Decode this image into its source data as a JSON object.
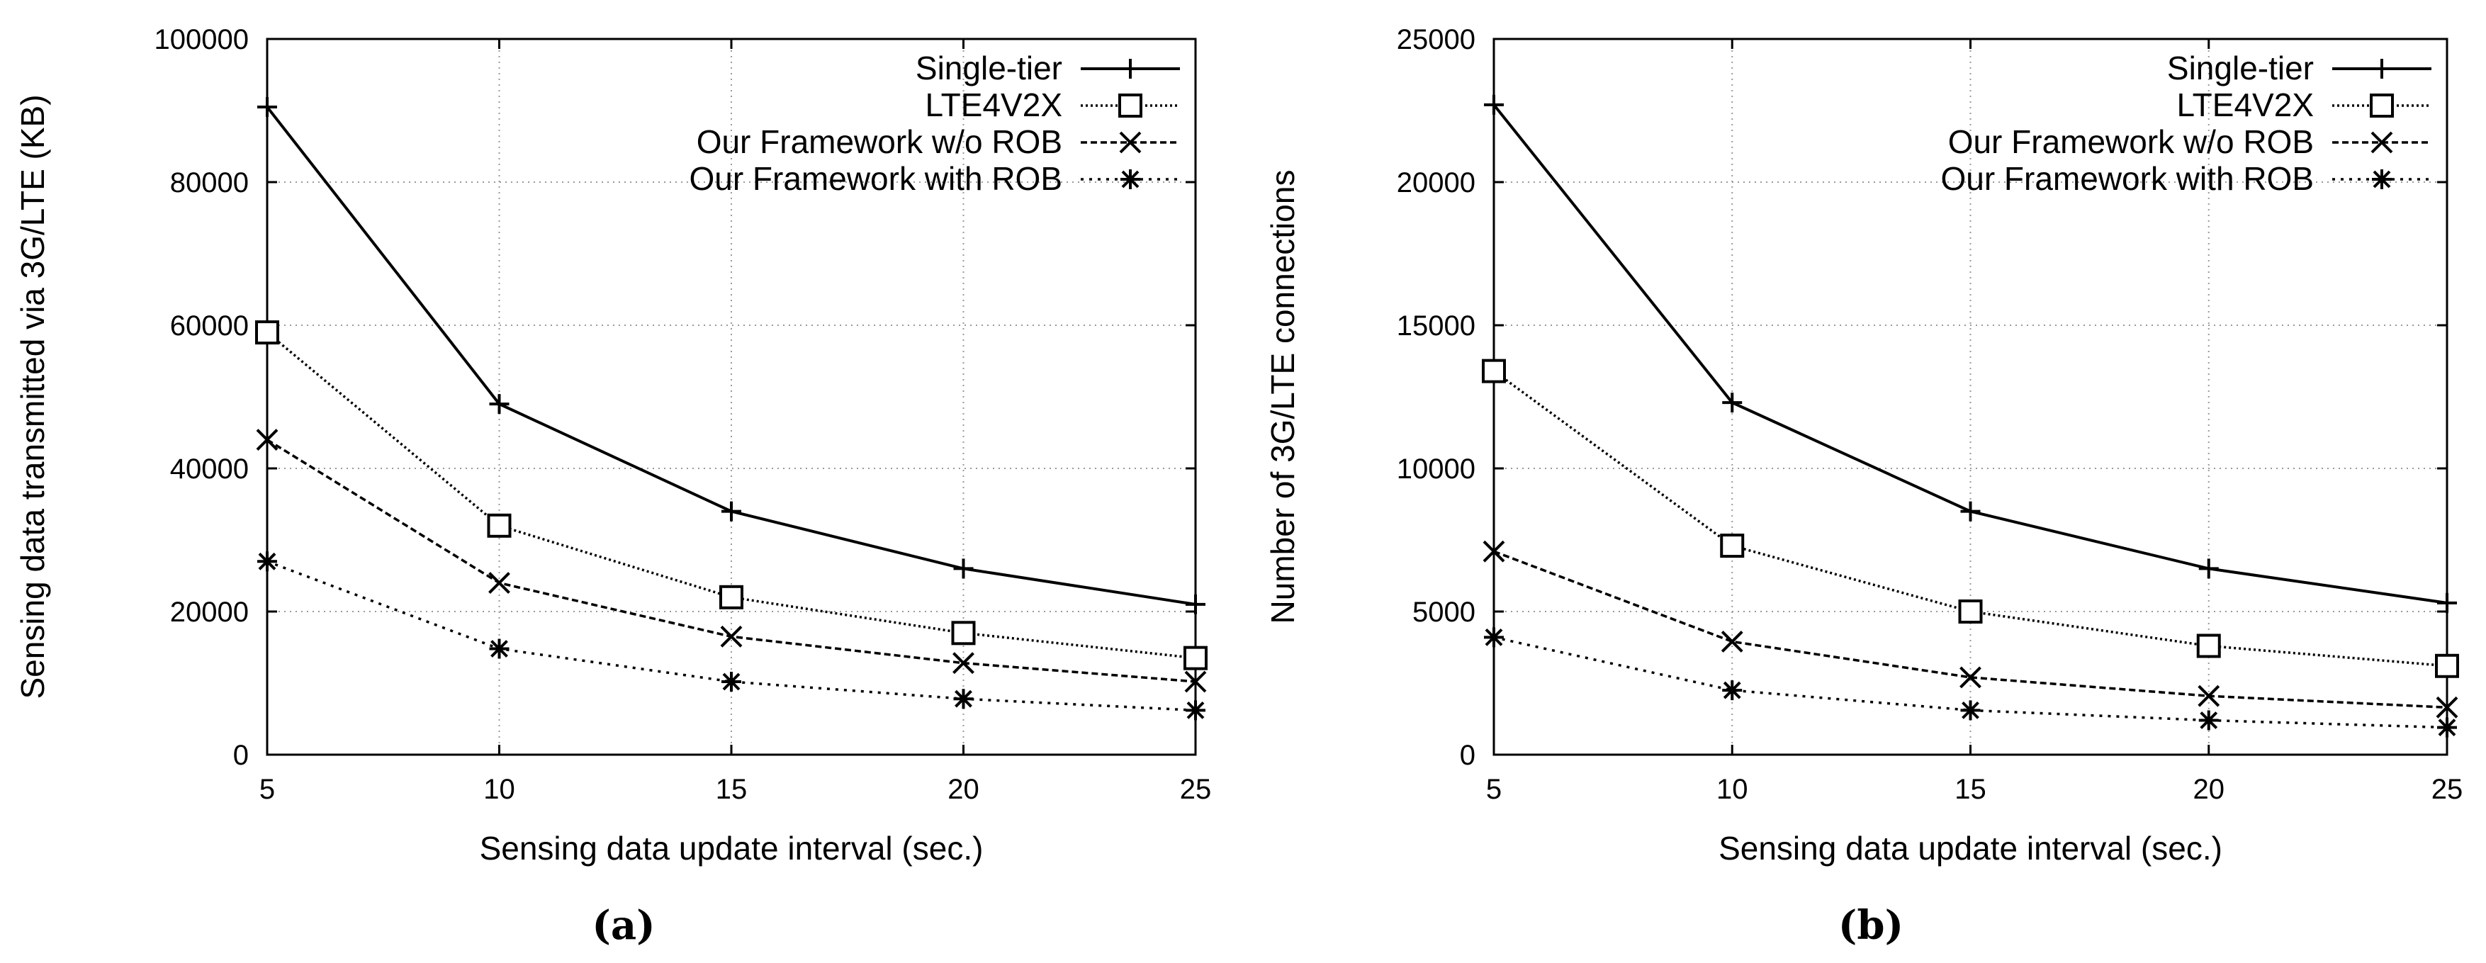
{
  "chart_data": [
    {
      "type": "line",
      "caption": "(a)",
      "xlabel": "Sensing data update interval (sec.)",
      "ylabel": "Sensing data transmitted via 3G/LTE (KB)",
      "x": [
        5,
        10,
        15,
        20,
        25
      ],
      "xticks": [
        5,
        10,
        15,
        20,
        25
      ],
      "yticks": [
        0,
        20000,
        40000,
        60000,
        80000,
        100000
      ],
      "xlim": [
        5,
        25
      ],
      "ylim": [
        0,
        100000
      ],
      "grid": true,
      "legend_position": "top-right",
      "series": [
        {
          "name": "Single-tier",
          "marker": "plus",
          "dash": "solid",
          "values": [
            90500,
            49000,
            34000,
            26000,
            21000
          ]
        },
        {
          "name": "LTE4V2X",
          "marker": "square",
          "dash": "dotted-fine",
          "values": [
            59000,
            32000,
            22000,
            17000,
            13500
          ]
        },
        {
          "name": "Our Framework w/o ROB",
          "marker": "cross",
          "dash": "dashed",
          "values": [
            44000,
            24000,
            16500,
            12800,
            10200
          ]
        },
        {
          "name": "Our Framework with ROB",
          "marker": "star",
          "dash": "dotted",
          "values": [
            27000,
            14800,
            10200,
            7800,
            6200
          ]
        }
      ]
    },
    {
      "type": "line",
      "caption": "(b)",
      "xlabel": "Sensing data update interval (sec.)",
      "ylabel": "Number of 3G/LTE connections",
      "x": [
        5,
        10,
        15,
        20,
        25
      ],
      "xticks": [
        5,
        10,
        15,
        20,
        25
      ],
      "yticks": [
        0,
        5000,
        10000,
        15000,
        20000,
        25000
      ],
      "xlim": [
        5,
        25
      ],
      "ylim": [
        0,
        25000
      ],
      "grid": true,
      "legend_position": "top-right",
      "series": [
        {
          "name": "Single-tier",
          "marker": "plus",
          "dash": "solid",
          "values": [
            22700,
            12300,
            8500,
            6500,
            5300
          ]
        },
        {
          "name": "LTE4V2X",
          "marker": "square",
          "dash": "dotted-fine",
          "values": [
            13400,
            7300,
            5000,
            3800,
            3100
          ]
        },
        {
          "name": "Our Framework w/o ROB",
          "marker": "cross",
          "dash": "dashed",
          "values": [
            7100,
            3950,
            2700,
            2050,
            1650
          ]
        },
        {
          "name": "Our Framework with ROB",
          "marker": "star",
          "dash": "dotted",
          "values": [
            4100,
            2250,
            1550,
            1200,
            950
          ]
        }
      ]
    }
  ]
}
